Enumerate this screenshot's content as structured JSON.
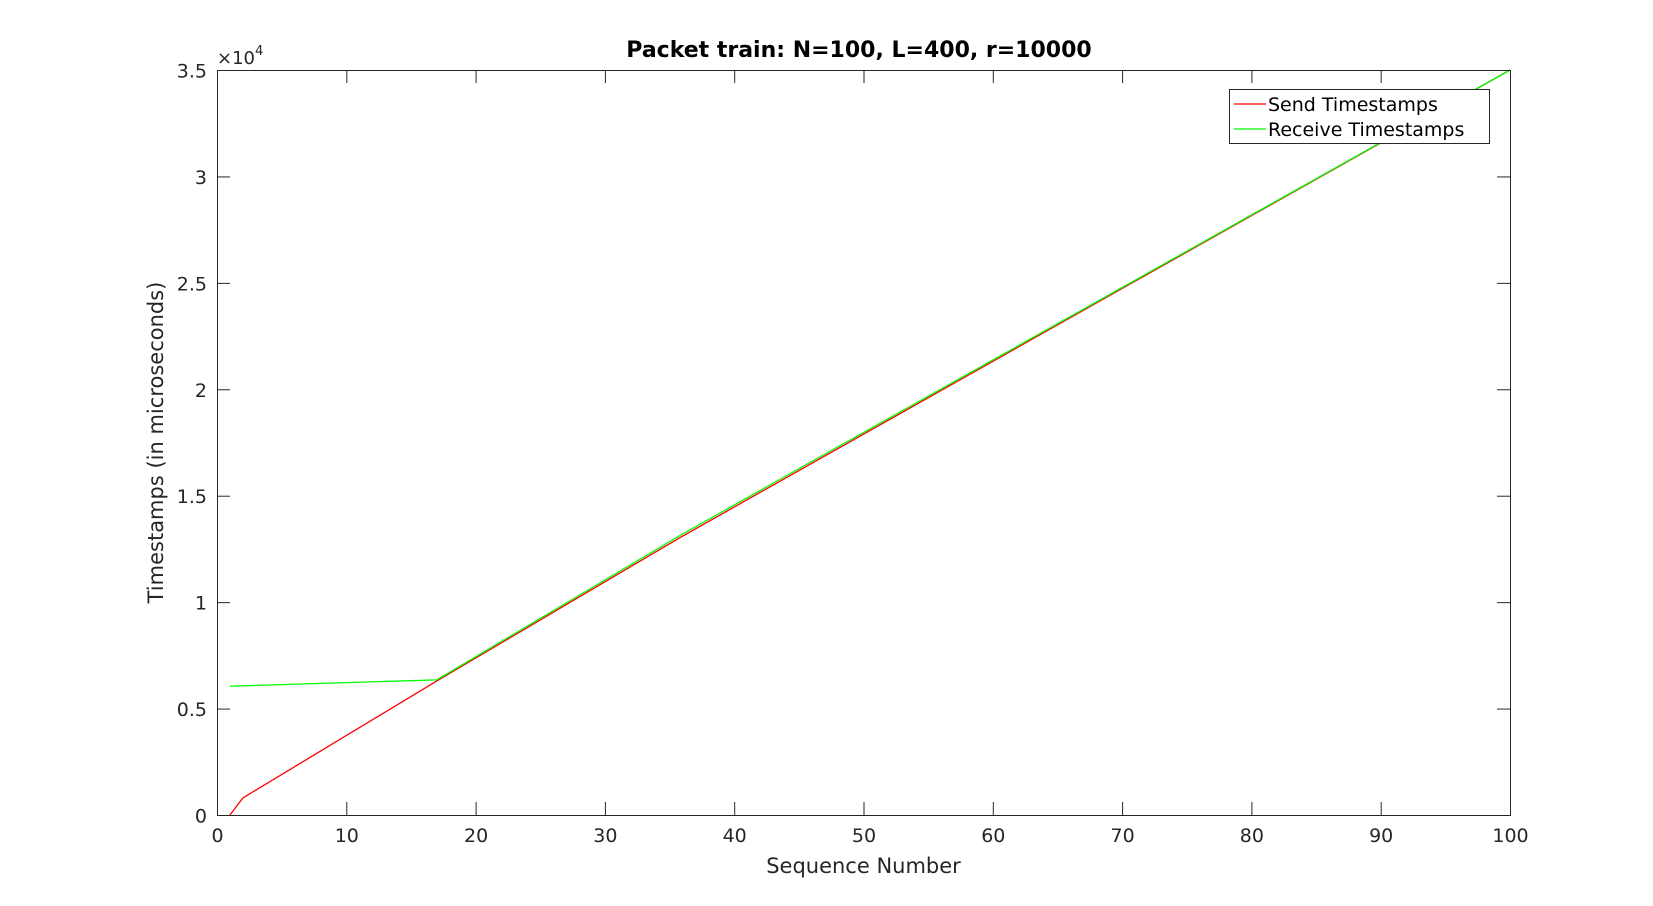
{
  "chart_data": {
    "type": "line",
    "title": "Packet train: N=100, L=400, r=10000",
    "xlabel": "Sequence Number",
    "ylabel": "Timestamps (in microseconds)",
    "xlim": [
      0,
      100
    ],
    "ylim": [
      0,
      35000
    ],
    "x_ticks": [
      0,
      10,
      20,
      30,
      40,
      50,
      60,
      70,
      80,
      90,
      100
    ],
    "x_tick_labels": [
      "0",
      "10",
      "20",
      "30",
      "40",
      "50",
      "60",
      "70",
      "80",
      "90",
      "100"
    ],
    "y_ticks": [
      0,
      5000,
      10000,
      15000,
      20000,
      25000,
      30000,
      35000
    ],
    "y_tick_labels": [
      "0",
      "0.5",
      "1",
      "1.5",
      "2",
      "2.5",
      "3",
      "3.5"
    ],
    "y_multiplier": {
      "base": "×10",
      "exponent": "4"
    },
    "grid": false,
    "box": true,
    "legend_location": "top-right",
    "series": [
      {
        "name": "Send Timestamps",
        "color": "#ff0000",
        "points": [
          [
            1,
            0
          ],
          [
            2,
            800
          ],
          [
            17,
            6300
          ],
          [
            36,
            13100
          ],
          [
            100,
            35000
          ]
        ]
      },
      {
        "name": "Receive Timestamps",
        "color": "#00ff00",
        "points": [
          [
            1,
            6050
          ],
          [
            17,
            6350
          ],
          [
            36,
            13200
          ],
          [
            100,
            35000
          ]
        ]
      }
    ]
  }
}
